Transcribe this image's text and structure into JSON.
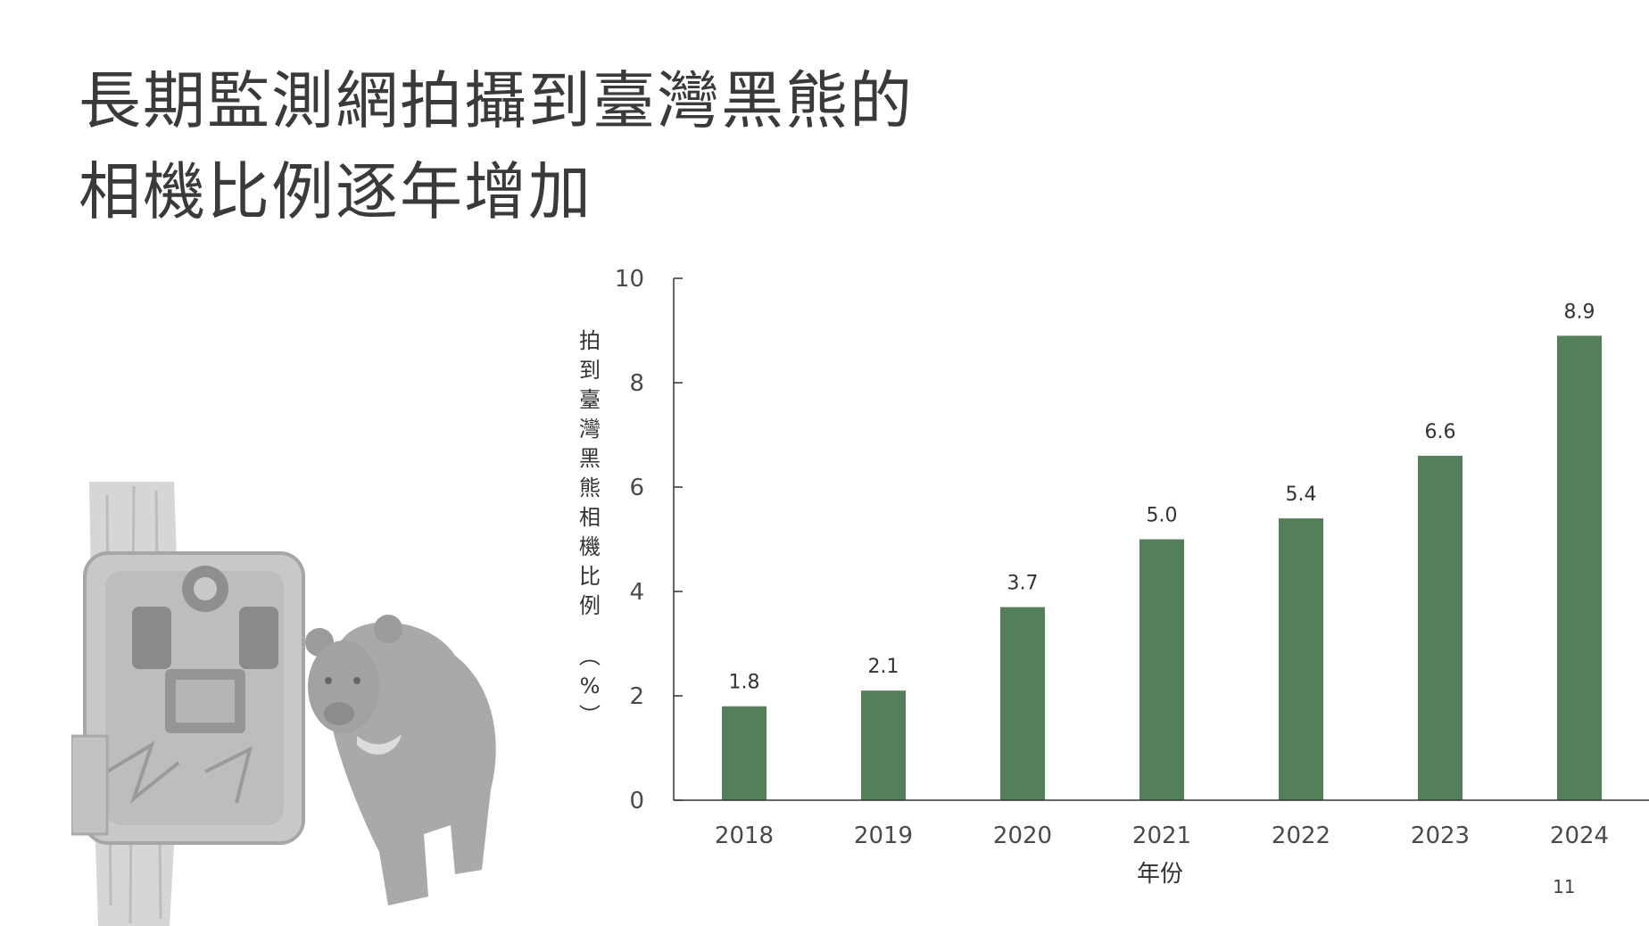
{
  "slide": {
    "title_line1": "長期監測網拍攝到臺灣黑熊的",
    "title_line2": "相機比例逐年增加",
    "page_number": "11"
  },
  "illustration": {
    "camera_icon": "trail-camera-icon",
    "bear_icon": "black-bear-icon",
    "color": "#c4c4c4"
  },
  "chart_data": {
    "type": "bar",
    "categories": [
      "2018",
      "2019",
      "2020",
      "2021",
      "2022",
      "2023",
      "2024"
    ],
    "values": [
      1.8,
      2.1,
      3.7,
      5.0,
      5.4,
      6.6,
      8.9
    ],
    "data_labels": [
      "1.8",
      "2.1",
      "3.7",
      "5.0",
      "5.4",
      "6.6",
      "8.9"
    ],
    "ylabel": "拍到臺灣黑熊相機比例（%）",
    "xlabel": "年份",
    "ylim": [
      0,
      10
    ],
    "yticks": [
      0,
      2,
      4,
      6,
      8,
      10
    ],
    "ytick_labels": [
      "0",
      "2",
      "4",
      "6",
      "8",
      "10"
    ],
    "bar_color": "#548059",
    "axis_color": "#333333",
    "grid": false,
    "legend": "none"
  }
}
